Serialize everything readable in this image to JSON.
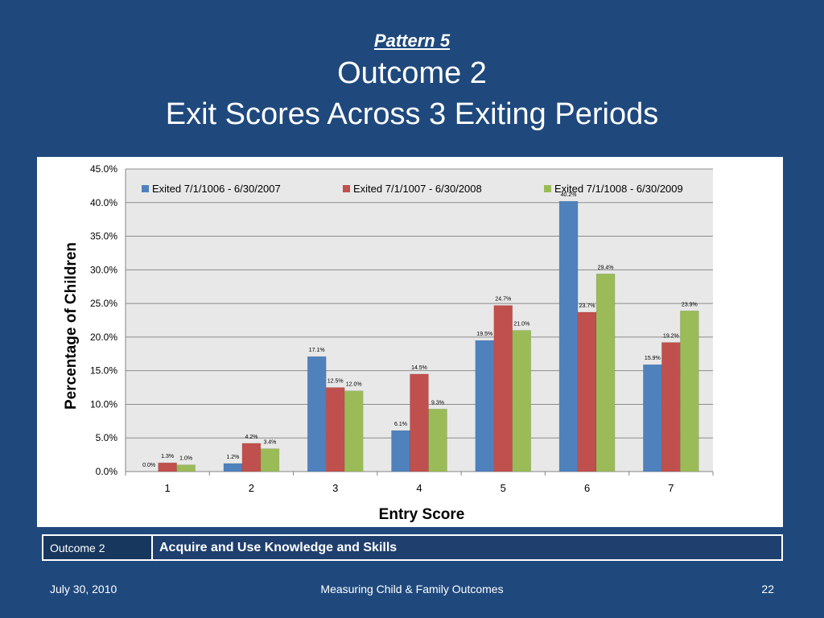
{
  "slide": {
    "pattern": "Pattern 5",
    "outcome_title": "Outcome 2",
    "main_title": "Exit Scores Across 3 Exiting Periods"
  },
  "info": {
    "label": "Outcome 2",
    "text": "Acquire and Use Knowledge and Skills"
  },
  "footer": {
    "date": "July 30, 2010",
    "center": "Measuring Child & Family Outcomes",
    "page": "22"
  },
  "chart_data": {
    "type": "bar",
    "title": "",
    "xlabel": "Entry Score",
    "ylabel": "Percentage of Children",
    "categories": [
      "1",
      "2",
      "3",
      "4",
      "5",
      "6",
      "7"
    ],
    "ylim": [
      0,
      45
    ],
    "yticks": [
      "0.0%",
      "5.0%",
      "10.0%",
      "15.0%",
      "20.0%",
      "25.0%",
      "30.0%",
      "35.0%",
      "40.0%",
      "45.0%"
    ],
    "grid": true,
    "legend_position": "top",
    "series": [
      {
        "name": "Exited 7/1/1006 - 6/30/2007",
        "color": "#4f81bd",
        "values": [
          0.0,
          1.2,
          17.1,
          6.1,
          19.5,
          40.2,
          15.9
        ],
        "labels": [
          "0.0%",
          "1.2%",
          "17.1%",
          "6.1%",
          "19.5%",
          "40.2%",
          "15.9%"
        ]
      },
      {
        "name": "Exited 7/1/1007 - 6/30/2008",
        "color": "#c0504d",
        "values": [
          1.3,
          4.2,
          12.5,
          14.5,
          24.7,
          23.7,
          19.2
        ],
        "labels": [
          "1.3%",
          "4.2%",
          "12.5%",
          "14.5%",
          "24.7%",
          "23.7%",
          "19.2%"
        ]
      },
      {
        "name": "Exited 7/1/1008 - 6/30/2009",
        "color": "#9bbb59",
        "values": [
          1.0,
          3.4,
          12.0,
          9.3,
          21.0,
          29.4,
          23.9
        ],
        "labels": [
          "1.0%",
          "3.4%",
          "12.0%",
          "9.3%",
          "21.0%",
          "29.4%",
          "23.9%"
        ]
      }
    ]
  }
}
